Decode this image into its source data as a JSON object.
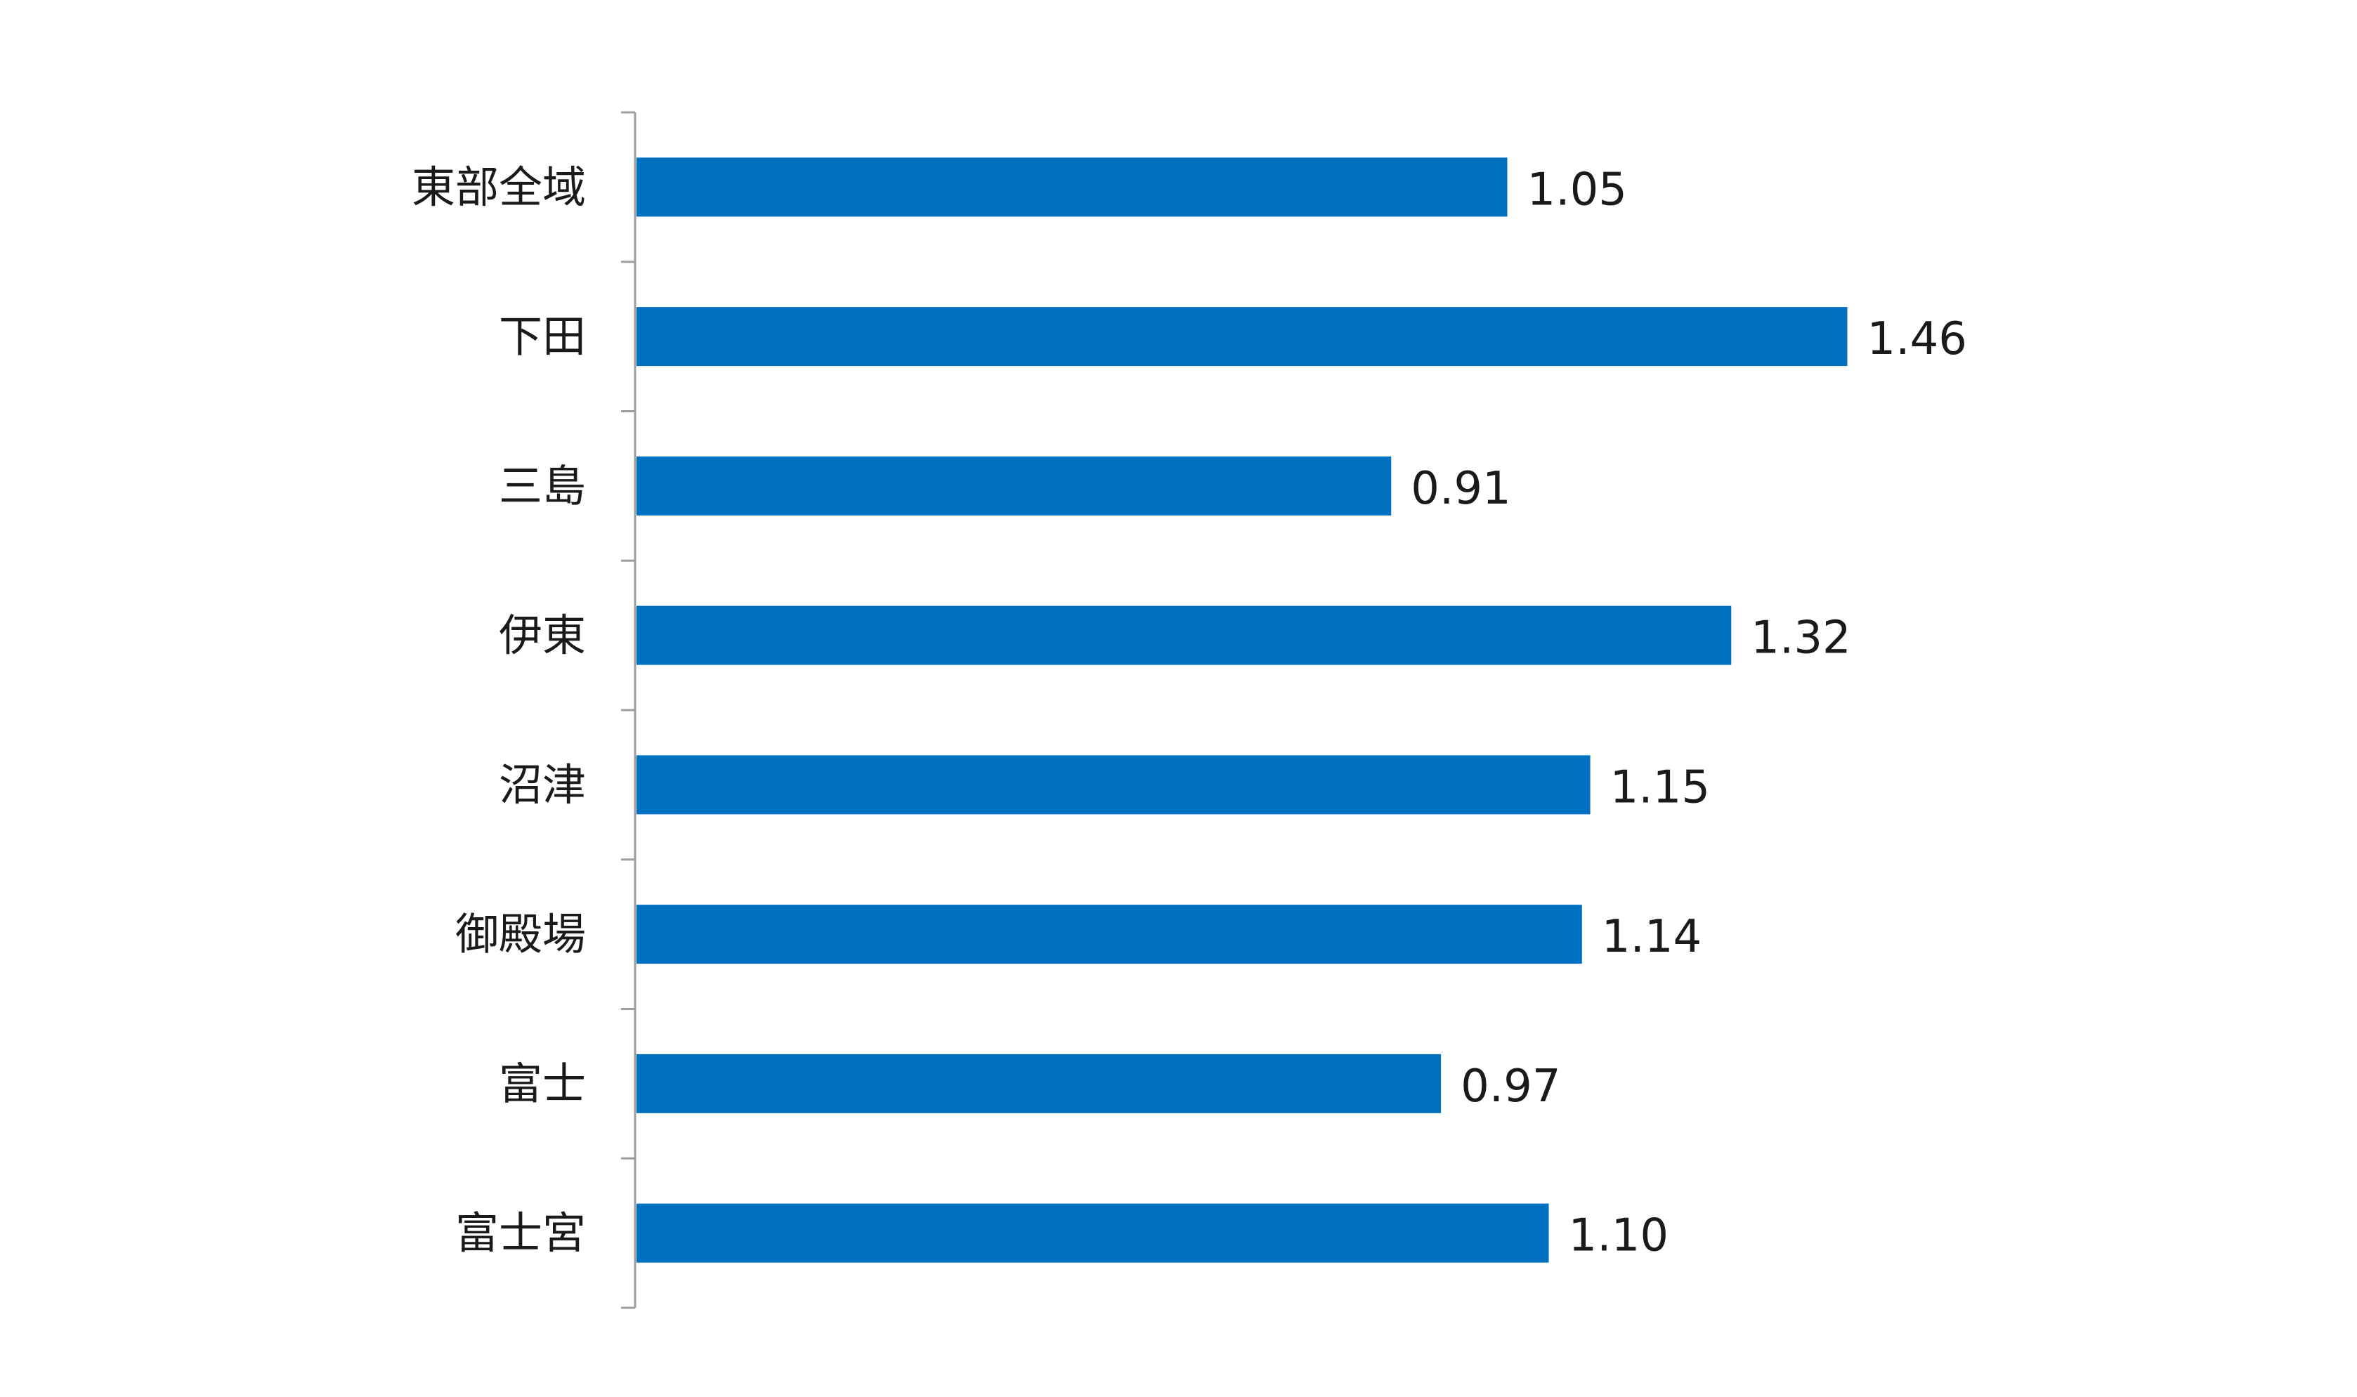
{
  "chart_data": {
    "type": "bar",
    "orientation": "horizontal",
    "categories": [
      "東部全域",
      "下田",
      "三島",
      "伊東",
      "沼津",
      "御殿場",
      "富士",
      "富士宮"
    ],
    "values": [
      1.05,
      1.46,
      0.91,
      1.32,
      1.15,
      1.14,
      0.97,
      1.1
    ],
    "value_labels": [
      "1.05",
      "1.46",
      "0.91",
      "1.32",
      "1.15",
      "1.14",
      "0.97",
      "1.10"
    ],
    "title": "",
    "xlabel": "",
    "ylabel": "",
    "xlim": [
      0,
      1.6
    ],
    "grid": false,
    "legend": "none",
    "bar_color": "#0070C0"
  }
}
